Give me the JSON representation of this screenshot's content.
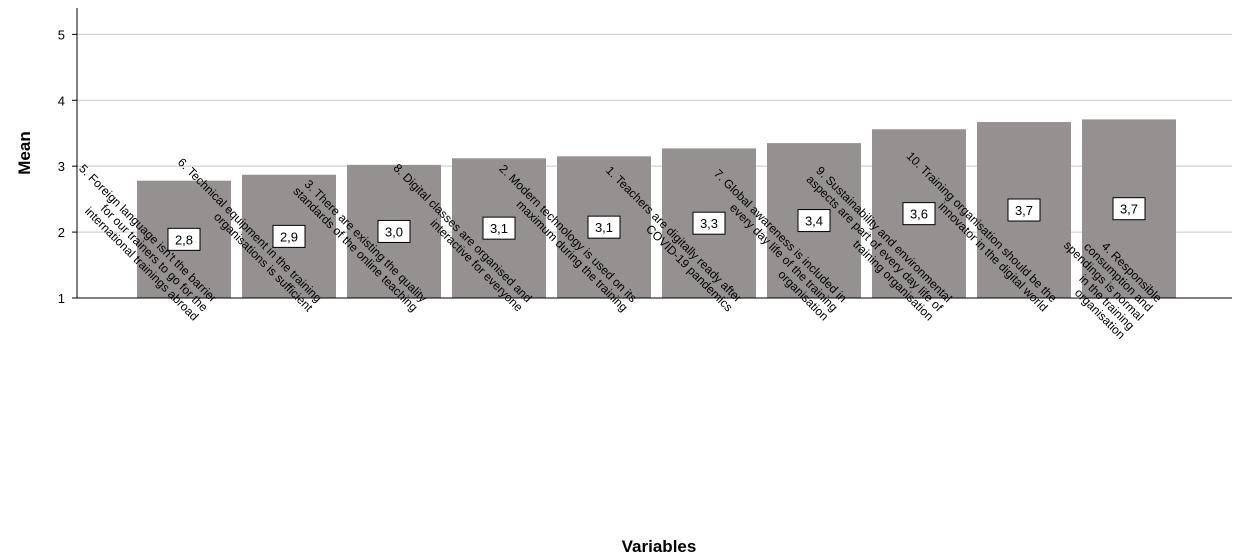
{
  "chart_data": {
    "type": "bar",
    "xlabel": "Variables",
    "ylabel": "Mean",
    "ylim": [
      1,
      5.4
    ],
    "yticks": [
      "1",
      "2",
      "3",
      "4",
      "5"
    ],
    "grid": true,
    "bar_color": "#959190",
    "categories": [
      [
        "5. Foreign language isn't the barrier",
        "for our trainers to go for the",
        "international trainings abroad"
      ],
      [
        "6. Technical equipment in the training",
        "organisations is sufficient"
      ],
      [
        "3. There are existing the quality",
        "standards of the online teaching"
      ],
      [
        "8. Digital classes are organised and",
        "interactive for everyone"
      ],
      [
        "2. Modern technology is used on its",
        "maximum during the training"
      ],
      [
        "1. Teachers are digitally ready after",
        "COVID-19 pandemics"
      ],
      [
        "7. Global awareness is included in",
        "every day life of the training",
        "organisation"
      ],
      [
        "9. Sustainability and environmental",
        "aspects are part of every day life of",
        "training organisation"
      ],
      [
        "10. Training organisation should be the",
        "innovator in the digital world"
      ],
      [
        "4. Responsible",
        "consumption and",
        "spendings is normal",
        "in the training",
        "organisation"
      ]
    ],
    "values": [
      2.78,
      2.87,
      3.02,
      3.12,
      3.15,
      3.27,
      3.35,
      3.56,
      3.67,
      3.71
    ],
    "data_labels": [
      "2,8",
      "2,9",
      "3,0",
      "3,1",
      "3,1",
      "3,3",
      "3,4",
      "3,6",
      "3,7",
      "3,7"
    ]
  }
}
